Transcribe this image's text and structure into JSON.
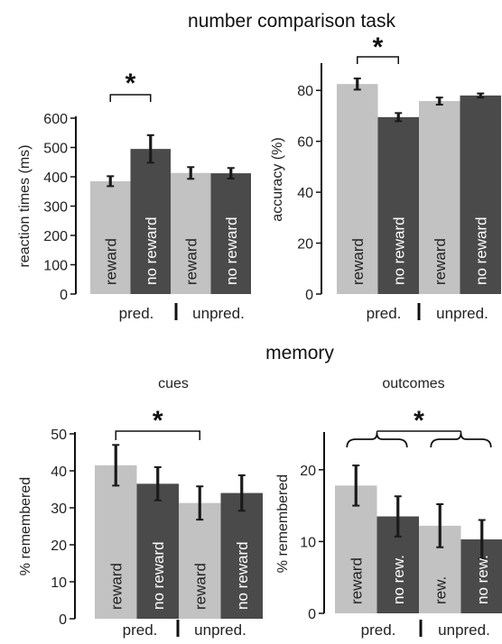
{
  "top_title": "number comparison task",
  "bottom_title": "memory",
  "colors": {
    "light": "#c2c2c2",
    "dark": "#4a4a4a",
    "axis": "#111111"
  },
  "chart_data": [
    {
      "type": "bar",
      "title": "",
      "ylabel": "reaction times (ms)",
      "ylim": [
        0,
        600
      ],
      "yticks": [
        0,
        100,
        200,
        300,
        400,
        500,
        600
      ],
      "bar_labels": [
        "reward",
        "no reward",
        "reward",
        "no reward"
      ],
      "values": [
        385,
        495,
        413,
        412
      ],
      "errors": [
        17,
        47,
        20,
        18
      ],
      "group_labels": [
        "pred.",
        "unpred."
      ],
      "significance": {
        "bars": [
          0,
          1
        ],
        "label": "*"
      },
      "grid": false
    },
    {
      "type": "bar",
      "title": "",
      "ylabel": "accuracy (%)",
      "ylim": [
        0,
        90
      ],
      "yticks": [
        0,
        20,
        40,
        60,
        80
      ],
      "bar_labels": [
        "reward",
        "no reward",
        "reward",
        "no reward"
      ],
      "values": [
        82.5,
        69.5,
        75.8,
        78
      ],
      "errors": [
        2.2,
        1.6,
        1.4,
        0.8
      ],
      "group_labels": [
        "pred.",
        "unpred."
      ],
      "significance": {
        "bars": [
          0,
          1
        ],
        "label": "*"
      },
      "grid": false
    },
    {
      "type": "bar",
      "title": "cues",
      "ylabel": "% remembered",
      "ylim": [
        0,
        50
      ],
      "yticks": [
        0,
        10,
        20,
        30,
        40,
        50
      ],
      "bar_labels": [
        "reward",
        "no reward",
        "reward",
        "no reward"
      ],
      "values": [
        41.5,
        36.5,
        31.3,
        34
      ],
      "errors": [
        5.5,
        4.5,
        4.5,
        4.8
      ],
      "group_labels": [
        "pred.",
        "unpred."
      ],
      "significance": {
        "bars": [
          0,
          2
        ],
        "label": "*"
      },
      "grid": false
    },
    {
      "type": "bar",
      "title": "outcomes",
      "ylabel": "% remembered",
      "ylim": [
        0,
        25
      ],
      "yticks": [
        0,
        10,
        20
      ],
      "bar_labels": [
        "reward",
        "no rew.",
        "rew.",
        "no rew."
      ],
      "values": [
        17.8,
        13.5,
        12.2,
        10.3
      ],
      "errors": [
        2.8,
        2.8,
        3,
        2.7
      ],
      "group_labels": [
        "pred.",
        "unpred."
      ],
      "significance": {
        "bars": [
          [
            0,
            1
          ],
          [
            2,
            3
          ]
        ],
        "label": "*"
      },
      "grid": false
    }
  ]
}
